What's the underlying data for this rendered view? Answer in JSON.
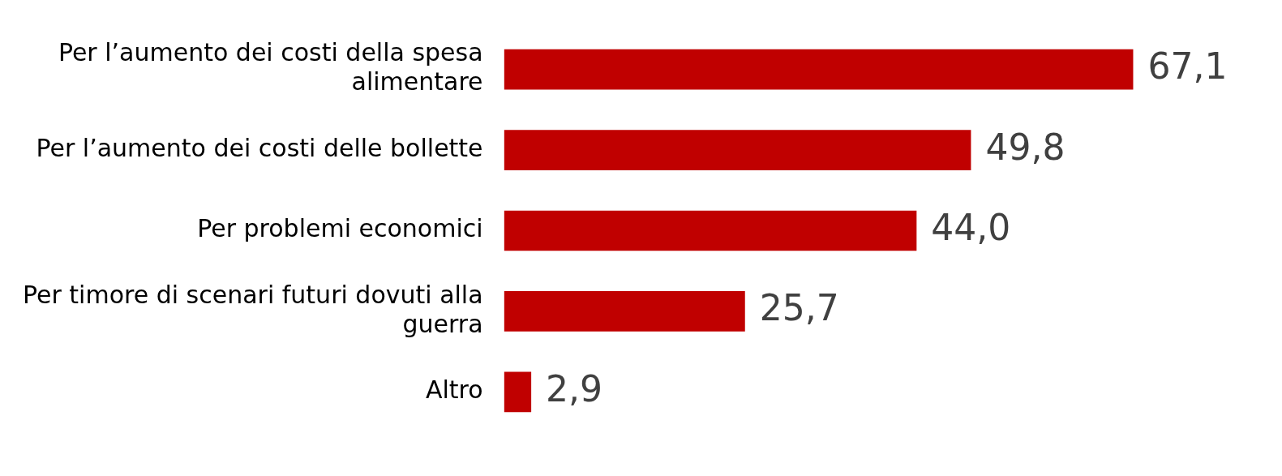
{
  "chart_data": {
    "type": "bar",
    "orientation": "horizontal",
    "color": "#c00000",
    "categories": [
      "Per l’aumento dei costi della spesa alimentare",
      "Per l’aumento dei costi delle bollette",
      "Per problemi economici",
      "Per timore di scenari futuri dovuti alla guerra",
      "Altro"
    ],
    "values": [
      67.1,
      49.8,
      44.0,
      25.7,
      2.9
    ],
    "value_labels": [
      "67,1",
      "49,8",
      "44,0",
      "25,7",
      "2,9"
    ],
    "grid": false,
    "legend": false,
    "tick_labels": "y"
  }
}
